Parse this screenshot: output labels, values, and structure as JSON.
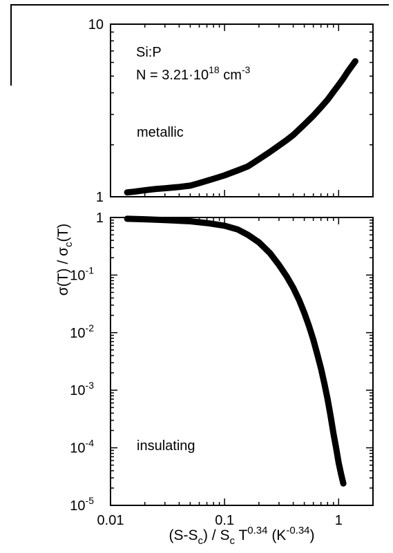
{
  "chart_data": [
    {
      "type": "line",
      "panel": "top",
      "scale": "log-log",
      "xlim": [
        0.01,
        2
      ],
      "ylim": [
        1,
        10
      ],
      "y_tick_labels": [
        {
          "value": 10,
          "label": "10"
        },
        {
          "value": 1,
          "label": "1"
        }
      ],
      "annotations": {
        "material": "Si:P",
        "density": "N = 3.21·10",
        "density_exp": "18",
        "density_unit": " cm",
        "density_unit_exp": "-3",
        "regime": "metallic"
      },
      "series": [
        {
          "x": [
            0.014,
            0.016,
            0.02,
            0.025,
            0.03,
            0.04,
            0.05,
            0.06,
            0.08,
            0.1,
            0.13,
            0.16,
            0.2,
            0.25,
            0.3,
            0.35,
            0.4,
            0.5,
            0.6,
            0.7,
            0.8,
            0.9,
            1.0,
            1.1,
            1.2,
            1.3,
            1.4
          ],
          "y": [
            1.06,
            1.07,
            1.09,
            1.11,
            1.12,
            1.14,
            1.16,
            1.2,
            1.27,
            1.33,
            1.42,
            1.5,
            1.65,
            1.82,
            1.98,
            2.13,
            2.28,
            2.62,
            2.95,
            3.3,
            3.65,
            4.05,
            4.45,
            4.85,
            5.3,
            5.7,
            6.1
          ]
        }
      ]
    },
    {
      "type": "line",
      "panel": "bottom",
      "scale": "log-log",
      "xlim": [
        0.01,
        2
      ],
      "ylim": [
        1e-05,
        1
      ],
      "x_tick_labels": [
        {
          "value": 0.01,
          "label": "0.01"
        },
        {
          "value": 0.1,
          "label": "0.1"
        },
        {
          "value": 1,
          "label": "1"
        }
      ],
      "y_tick_labels": [
        {
          "value": 1,
          "label": "1",
          "exp": ""
        },
        {
          "value": 0.1,
          "label": "10",
          "exp": "-1"
        },
        {
          "value": 0.01,
          "label": "10",
          "exp": "-2"
        },
        {
          "value": 0.001,
          "label": "10",
          "exp": "-3"
        },
        {
          "value": 0.0001,
          "label": "10",
          "exp": "-4"
        },
        {
          "value": 1e-05,
          "label": "10",
          "exp": "-5"
        }
      ],
      "annotations": {
        "regime": "insulating"
      },
      "series": [
        {
          "x": [
            0.014,
            0.02,
            0.03,
            0.05,
            0.07,
            0.1,
            0.13,
            0.16,
            0.2,
            0.25,
            0.3,
            0.35,
            0.4,
            0.45,
            0.5,
            0.55,
            0.6,
            0.65,
            0.7,
            0.75,
            0.8,
            0.85,
            0.9,
            0.95,
            1.0,
            1.05,
            1.1
          ],
          "y": [
            0.95,
            0.93,
            0.9,
            0.86,
            0.8,
            0.72,
            0.62,
            0.5,
            0.37,
            0.24,
            0.15,
            0.095,
            0.06,
            0.037,
            0.022,
            0.013,
            0.0075,
            0.0042,
            0.0024,
            0.0013,
            0.0007,
            0.00036,
            0.00018,
            0.0001,
            5.5e-05,
            3.5e-05,
            2.4e-05
          ]
        }
      ]
    }
  ],
  "y_axis_label": {
    "pre": "σ(T) / σ",
    "sub": "c",
    "post": "(T)"
  },
  "x_axis_label": {
    "pre": "(S-S",
    "sub1": "c",
    "mid": ") / S",
    "sub2": "c",
    "t": " T",
    "t_exp": "0.34",
    "unit": " (K",
    "unit_exp": "-0.34",
    "end": ")"
  }
}
